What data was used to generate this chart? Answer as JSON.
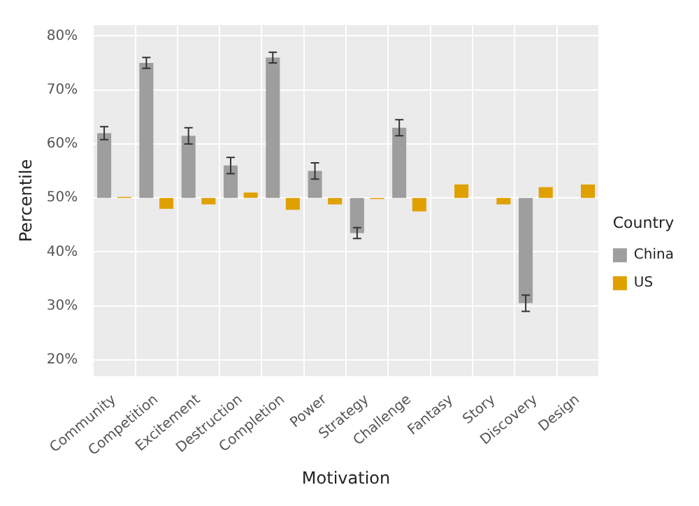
{
  "chart_data": {
    "type": "bar",
    "xlabel": "Motivation",
    "ylabel": "Percentile",
    "legend_title": "Country",
    "categories": [
      "Community",
      "Competition",
      "Excitement",
      "Destruction",
      "Completion",
      "Power",
      "Strategy",
      "Challenge",
      "Fantasy",
      "Story",
      "Discovery",
      "Design"
    ],
    "series": [
      {
        "name": "China",
        "color": "#9e9e9e",
        "base": [
          50,
          50,
          50,
          50,
          50,
          50,
          50,
          50,
          null,
          null,
          50,
          null
        ],
        "values": [
          12,
          25,
          11.5,
          6,
          26,
          5,
          -6.5,
          13,
          null,
          null,
          -19.5,
          null
        ],
        "errors": [
          1.2,
          1,
          1.5,
          1.5,
          1,
          1.5,
          1,
          1.5,
          null,
          null,
          1.5,
          null
        ]
      },
      {
        "name": "US",
        "color": "#e0a000",
        "base": [
          50,
          50,
          50,
          50,
          50,
          50,
          50,
          50,
          50,
          50,
          50,
          50
        ],
        "values": [
          0.2,
          -2,
          -1.2,
          1,
          -2.2,
          -1.2,
          -0.2,
          -2.5,
          2.5,
          -1.2,
          2,
          2.5
        ]
      }
    ],
    "ylim": [
      17,
      82
    ],
    "yticks": [
      {
        "value": 20,
        "label": "20%"
      },
      {
        "value": 30,
        "label": "30%"
      },
      {
        "value": 40,
        "label": "40%"
      },
      {
        "value": 50,
        "label": "50%"
      },
      {
        "value": 60,
        "label": "60%"
      },
      {
        "value": 70,
        "label": "70%"
      },
      {
        "value": 80,
        "label": "80%"
      }
    ],
    "grid": true,
    "legend": "right"
  }
}
